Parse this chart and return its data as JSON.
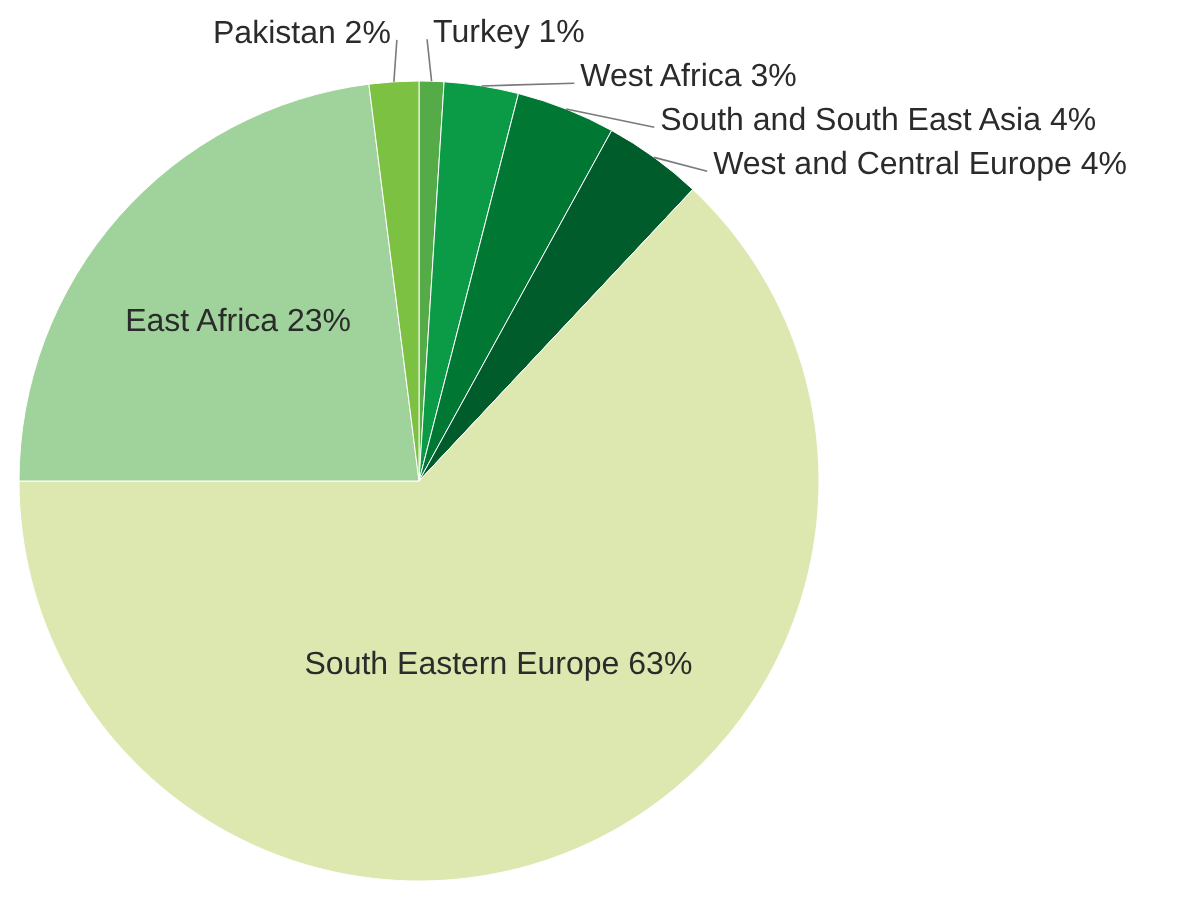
{
  "chart_data": {
    "type": "pie",
    "categories": [
      "Turkey",
      "West Africa",
      "South and South East Asia",
      "West and Central Europe",
      "South Eastern Europe",
      "East Africa",
      "Pakistan"
    ],
    "values": [
      1,
      3,
      4,
      4,
      63,
      23,
      2
    ],
    "value_labels": [
      "1%",
      "3%",
      "4%",
      "4%",
      "63%",
      "23%",
      "2%"
    ],
    "colors": [
      "#55ab48",
      "#0b9a46",
      "#007834",
      "#005d2b",
      "#dce8b0",
      "#a0d39b",
      "#7dc143"
    ]
  }
}
